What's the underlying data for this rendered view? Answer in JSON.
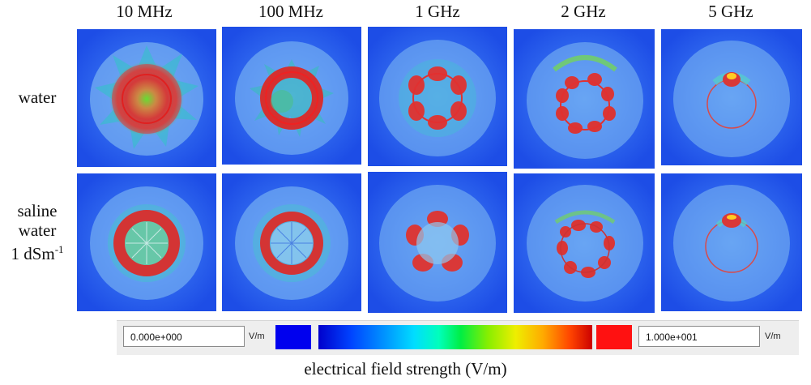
{
  "columns": [
    "10 MHz",
    "100 MHz",
    "1 GHz",
    "2 GHz",
    "5 GHz"
  ],
  "rows": {
    "water": "water",
    "saline_line1": "saline",
    "saline_line2": "water",
    "saline_line3": "1 dSm",
    "saline_exp": "-1"
  },
  "legend": {
    "min_value": "0.000e+000",
    "max_value": "1.000e+001",
    "unit": "V/m",
    "min_color": "#0000ee",
    "max_color": "#ff1111"
  },
  "caption": "electrical field strength (V/m)",
  "colors": {
    "background": "#1f4fe8",
    "disc": "#6fa6f0",
    "hot": "#e03a3a"
  }
}
